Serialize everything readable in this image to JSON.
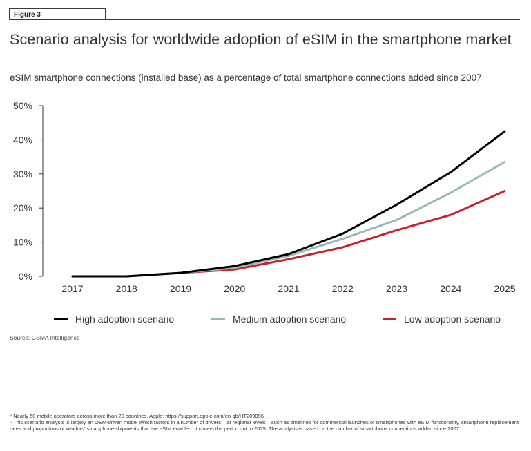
{
  "figure_label": "Figure 3",
  "title": "Scenario analysis for worldwide adoption of eSIM in the smartphone market",
  "subtitle": "eSIM smartphone connections (installed base) as a percentage of total smartphone connections added since 2007",
  "source": "Source: GSMA Intelligence",
  "footnotes": {
    "f4_text": "⁴ Nearly 50 mobile operators across more than 20 countries. Apple: ",
    "f4_link": "https://support.apple.com/en-gb/HT209096",
    "f5_text": "⁵ This scenario analysis is largely an OEM-driven model which factors in a number of drivers – at regional levels – such as timelines for commercial launches of smartphones with eSIM functionality, smartphone replacement rates and proportions of vendors' smartphone shipments that are eSIM enabled. It covers the period out to 2025. The analysis is based on the number of smartphone connections added since 2007."
  },
  "chart_data": {
    "type": "line",
    "x": [
      "2017",
      "2018",
      "2019",
      "2020",
      "2021",
      "2022",
      "2023",
      "2024",
      "2025"
    ],
    "ylim": [
      0,
      50
    ],
    "yticks": [
      "0%",
      "10%",
      "20%",
      "30%",
      "40%",
      "50%"
    ],
    "ytick_values": [
      0,
      10,
      20,
      30,
      40,
      50
    ],
    "legend_position": "bottom",
    "grid": false,
    "series": [
      {
        "name": "High adoption scenario",
        "color": "#000000",
        "values": [
          0,
          0,
          1,
          3,
          6.5,
          12.5,
          21,
          30.5,
          42.5
        ]
      },
      {
        "name": "Medium adoption scenario",
        "color": "#97b9bb",
        "values": [
          0,
          0,
          1,
          2.5,
          6,
          11,
          16.5,
          24.5,
          33.5
        ]
      },
      {
        "name": "Low adoption scenario",
        "color": "#cc1f2b",
        "values": [
          0,
          0,
          1,
          2,
          5,
          8.5,
          13.5,
          18,
          25
        ]
      }
    ]
  }
}
